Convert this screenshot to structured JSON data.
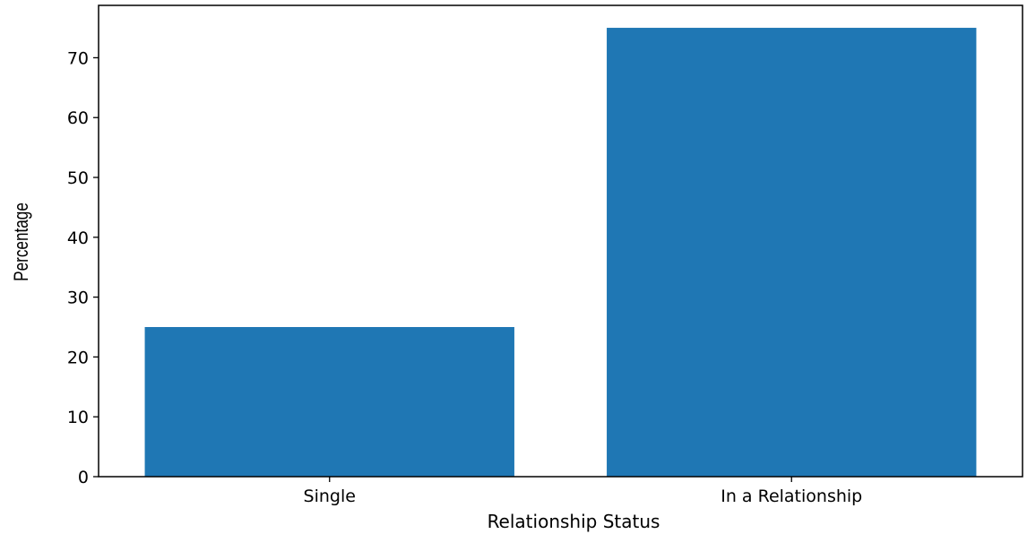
{
  "chart_data": {
    "type": "bar",
    "categories": [
      "Single",
      "In a Relationship"
    ],
    "values": [
      25,
      75
    ],
    "title": "",
    "xlabel": "Relationship Status",
    "ylabel": "Percentage",
    "ylim": [
      0,
      78.75
    ],
    "yticks": [
      0,
      10,
      20,
      30,
      40,
      50,
      60,
      70
    ],
    "bar_color": "#1f77b4",
    "grid": false,
    "legend": "none"
  }
}
